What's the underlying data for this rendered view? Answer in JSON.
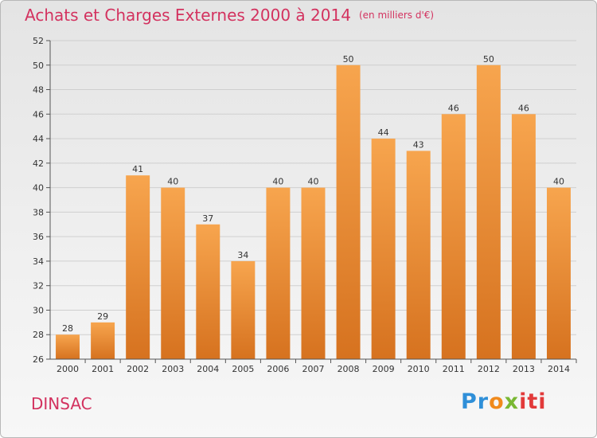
{
  "header": {
    "title": "Achats et Charges Externes 2000 à 2014",
    "unit": "(en milliers d'€)"
  },
  "footer": {
    "commune": "DINSAC",
    "logo_parts": [
      "Pr",
      "o",
      "x",
      "iti"
    ]
  },
  "colors": {
    "title": "#d3325f",
    "bar_light": "#f7a54e",
    "bar_dark": "#d6721f",
    "grid": "#cfcfcf"
  },
  "chart_data": {
    "type": "bar",
    "title": "Achats et Charges Externes 2000 à 2014",
    "xlabel": "",
    "ylabel": "",
    "categories": [
      "2000",
      "2001",
      "2002",
      "2003",
      "2004",
      "2005",
      "2006",
      "2007",
      "2008",
      "2009",
      "2010",
      "2011",
      "2012",
      "2013",
      "2014"
    ],
    "values": [
      28,
      29,
      41,
      40,
      37,
      34,
      40,
      40,
      50,
      44,
      43,
      46,
      50,
      46,
      40
    ],
    "ylim": [
      26,
      52
    ],
    "yticks": [
      26,
      28,
      30,
      32,
      34,
      36,
      38,
      40,
      42,
      44,
      46,
      48,
      50,
      52
    ],
    "grid": true,
    "data_labels": true
  }
}
